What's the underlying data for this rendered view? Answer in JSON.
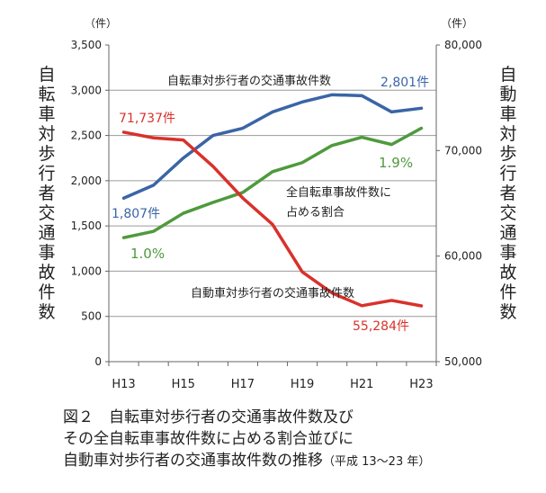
{
  "chart_data": {
    "type": "line",
    "categories": [
      "H13",
      "H14",
      "H15",
      "H16",
      "H17",
      "H18",
      "H19",
      "H20",
      "H21",
      "H22",
      "H23"
    ],
    "x_tick_labels": [
      "H13",
      "H15",
      "H17",
      "H19",
      "H21",
      "H23"
    ],
    "left_axis": {
      "unit": "（件）",
      "label": "自転車対歩行者交通事故件数",
      "ylim": [
        0,
        3500
      ],
      "ticks": [
        "3,500",
        "3,000",
        "2,500",
        "2,000",
        "1,500",
        "1,000",
        "500",
        "0"
      ]
    },
    "right_axis": {
      "unit": "（件）",
      "label": "自動車対歩行者交通事故件数",
      "ylim": [
        50000,
        80000
      ],
      "ticks": [
        "80,000",
        "70,000",
        "60,000",
        "50,000"
      ]
    },
    "series": [
      {
        "name": "自転車対歩行者の交通事故件数",
        "axis": "left",
        "color": "#3a65a6",
        "values": [
          1807,
          1950,
          2250,
          2500,
          2580,
          2760,
          2870,
          2950,
          2940,
          2760,
          2801
        ],
        "start_label": "1,807件",
        "end_label": "2,801件"
      },
      {
        "name": "全自転車事故件数に占める割合",
        "axis": "left",
        "color": "#4e9a3c",
        "values": [
          1370,
          1440,
          1640,
          1760,
          1870,
          2100,
          2200,
          2390,
          2480,
          2400,
          2580
        ],
        "start_label": "1.0%",
        "end_label": "1.9%"
      },
      {
        "name": "自動車対歩行者の交通事故件数",
        "axis": "right",
        "color": "#d9312b",
        "values": [
          71737,
          71200,
          71000,
          68500,
          65500,
          63000,
          58500,
          56500,
          55300,
          55800,
          55284
        ],
        "start_label": "71,737件",
        "end_label": "55,284件"
      }
    ],
    "annotations": {
      "bicycle_line": "自転車対歩行者の交通事故件数",
      "ratio_line_1": "全自転車事故件数に",
      "ratio_line_2": "占める割合",
      "car_line": "自動車対歩行者の交通事故件数"
    }
  },
  "caption": {
    "line1": "図２　自転車対歩行者の交通事故件数及び",
    "line2": "その全自転車事故件数に占める割合並びに",
    "line3": "自動車対歩行者の交通事故件数の推移",
    "note": "（平成 13〜23 年）"
  }
}
